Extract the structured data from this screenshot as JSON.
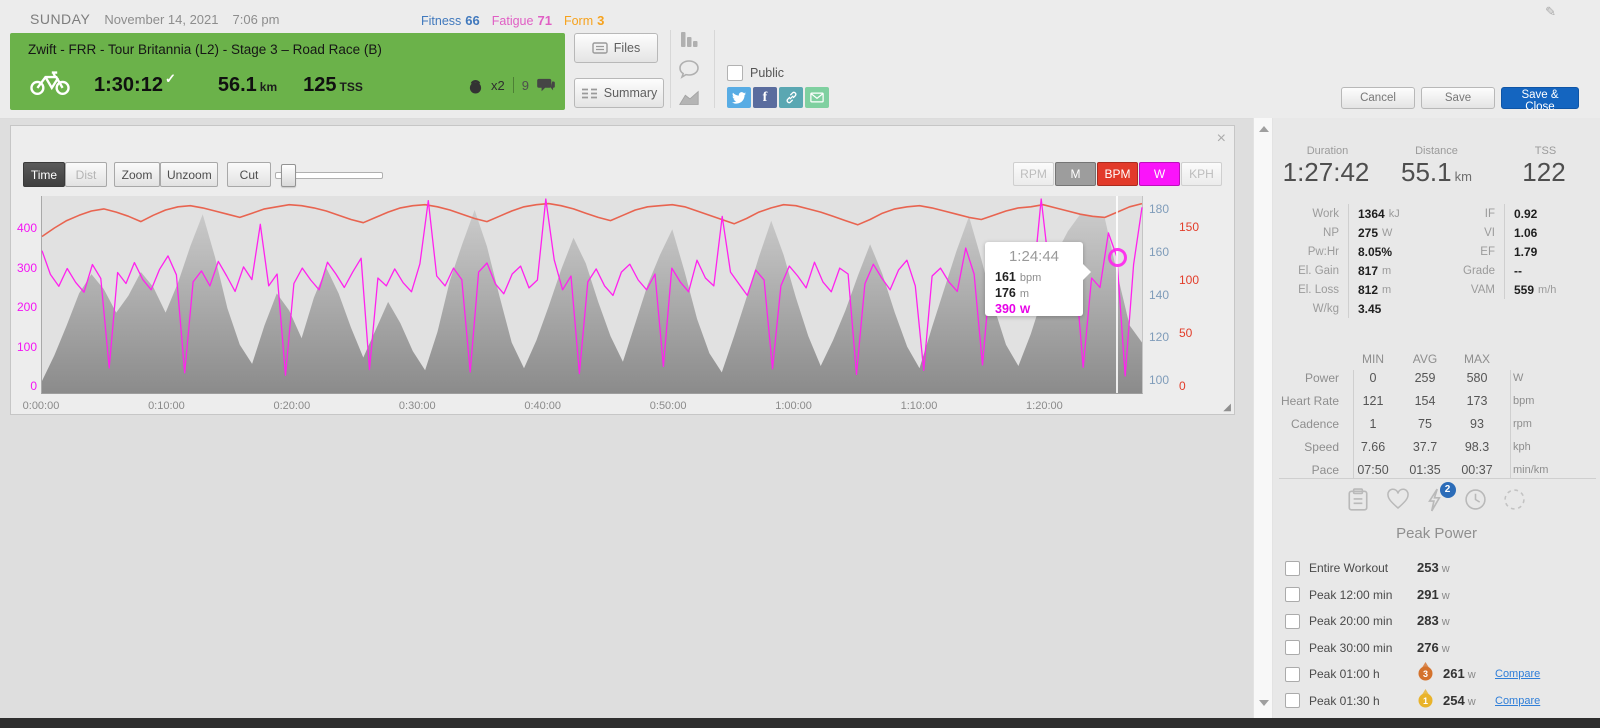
{
  "header": {
    "day": "SUNDAY",
    "date": "November 14, 2021",
    "time": "7:06 pm",
    "metrics": [
      {
        "label": "Fitness",
        "value": "66",
        "color": "#4179bd"
      },
      {
        "label": "Fatigue",
        "value": "71",
        "color": "#e05ec4"
      },
      {
        "label": "Form",
        "value": "3",
        "color": "#f6a21d"
      }
    ],
    "workout": {
      "title": "Zwift - FRR - Tour Britannia (L2) - Stage 3 – Road Race (B)",
      "duration": "1:30:12",
      "distance": "56.1",
      "distance_unit": "km",
      "tss": "125",
      "tss_unit": "TSS",
      "athletes": "x2",
      "comments": "9"
    },
    "buttons": {
      "files": "Files",
      "summary": "Summary"
    },
    "public_label": "Public",
    "actions": {
      "cancel": "Cancel",
      "save": "Save",
      "save_close": "Save & Close"
    }
  },
  "chart": {
    "toolbar": {
      "time": "Time",
      "dist": "Dist",
      "zoom": "Zoom",
      "unzoom": "Unzoom",
      "cut": "Cut"
    },
    "channels": [
      {
        "label": "RPM"
      },
      {
        "label": "M",
        "on": true,
        "color": "#9d9d9d"
      },
      {
        "label": "BPM",
        "on": true,
        "color": "#e23a2a"
      },
      {
        "label": "W",
        "on": true,
        "color": "#fa14fa"
      },
      {
        "label": "KPH"
      }
    ],
    "tooltip": {
      "time": "1:24:44",
      "hr": "161",
      "hr_unit": "bpm",
      "elev": "176",
      "elev_unit": "m",
      "power": "390",
      "power_unit": "W"
    }
  },
  "chart_data": {
    "type": "area+line",
    "x_axis": {
      "total_s": 5262,
      "tick_interval_s": 600,
      "tick_labels": [
        "0:00:00",
        "0:10:00",
        "0:20:00",
        "0:30:00",
        "0:40:00",
        "0:50:00",
        "1:00:00",
        "1:10:00",
        "1:20:00"
      ]
    },
    "axes": [
      {
        "id": "power",
        "unit": "W",
        "color": "#f414f4",
        "ticks": [
          0,
          100,
          200,
          300,
          400
        ],
        "domain": [
          0,
          400
        ]
      },
      {
        "id": "elevation",
        "unit": "m",
        "color": "#7f9cba",
        "ticks": [
          100,
          120,
          140,
          160,
          180
        ],
        "domain": [
          100,
          180
        ]
      },
      {
        "id": "heart_rate",
        "unit": "bpm",
        "color": "#e23d2a",
        "ticks": [
          0,
          50,
          100,
          150
        ],
        "domain": [
          0,
          150
        ]
      }
    ],
    "series": [
      {
        "name": "elevation",
        "axis": "elevation",
        "type": "area",
        "unit": "m",
        "values": [
          100,
          112,
          126,
          141,
          150,
          143,
          132,
          140,
          151,
          144,
          132,
          146,
          163,
          178,
          158,
          134,
          117,
          108,
          126,
          141,
          133,
          120,
          139,
          153,
          141,
          125,
          111,
          124,
          137,
          127,
          114,
          105,
          123,
          147,
          164,
          180,
          163,
          140,
          118,
          106,
          119,
          135,
          152,
          167,
          155,
          137,
          121,
          109,
          127,
          145,
          159,
          171,
          151,
          129,
          113,
          104,
          121,
          139,
          158,
          175,
          159,
          139,
          121,
          107,
          119,
          133,
          149,
          164,
          150,
          132,
          116,
          106,
          125,
          143,
          161,
          177,
          157,
          135,
          117,
          107,
          122,
          140,
          159,
          170,
          178,
          177,
          176,
          150,
          126,
          118
        ]
      },
      {
        "name": "heart_rate",
        "axis": "heart_rate",
        "type": "line",
        "color": "#e86450",
        "width": 1.6,
        "unit": "bpm",
        "values": [
          142,
          150,
          157,
          162,
          166,
          168,
          165,
          161,
          156,
          162,
          167,
          170,
          171,
          169,
          166,
          163,
          160,
          164,
          168,
          170,
          172,
          171,
          169,
          166,
          162,
          158,
          155,
          160,
          165,
          169,
          171,
          172,
          170,
          167,
          163,
          159,
          156,
          161,
          166,
          170,
          172,
          173,
          171,
          168,
          164,
          160,
          157,
          162,
          167,
          170,
          171,
          172,
          170,
          166,
          162,
          158,
          154,
          159,
          165,
          169,
          172,
          171,
          168,
          165,
          161,
          157,
          153,
          158,
          164,
          168,
          170,
          171,
          169,
          166,
          163,
          160,
          158,
          162,
          166,
          169,
          170,
          172,
          169,
          166,
          163,
          161,
          160,
          165,
          170,
          173
        ]
      },
      {
        "name": "power",
        "axis": "power",
        "type": "line",
        "color": "#ff22ee",
        "width": 1.3,
        "unit": "W",
        "values": [
          345,
          285,
          255,
          300,
          265,
          240,
          310,
          275,
          48,
          290,
          262,
          315,
          272,
          246,
          298,
          332,
          284,
          36,
          266,
          294,
          256,
          318,
          281,
          242,
          304,
          272,
          412,
          256,
          286,
          30,
          262,
          301,
          271,
          246,
          316,
          286,
          252,
          291,
          326,
          44,
          276,
          256,
          299,
          264,
          241,
          312,
          472,
          281,
          256,
          301,
          272,
          38,
          291,
          314,
          261,
          236,
          286,
          306,
          251,
          271,
          580,
          322,
          246,
          281,
          34,
          266,
          299,
          256,
          232,
          291,
          311,
          271,
          246,
          286,
          52,
          301,
          266,
          241,
          321,
          276,
          256,
          432,
          291,
          261,
          232,
          296,
          271,
          46,
          256,
          306,
          281,
          251,
          316,
          266,
          241,
          301,
          286,
          32,
          261,
          311,
          276,
          246,
          296,
          321,
          256,
          42,
          281,
          301,
          266,
          242,
          352,
          286,
          56,
          301,
          271,
          246,
          311,
          281,
          256,
          492,
          291,
          262,
          236,
          306,
          50,
          276,
          252,
          390,
          330,
          28,
          310,
          455
        ]
      }
    ],
    "cursor": {
      "time": "1:24:44",
      "power": 390,
      "heart_rate": 161,
      "elevation": 176
    }
  },
  "sidebar": {
    "summary": [
      {
        "label": "Duration",
        "value": "1:27:42",
        "unit": ""
      },
      {
        "label": "Distance",
        "value": "55.1",
        "unit": "km"
      },
      {
        "label": "TSS",
        "value": "122",
        "unit": ""
      }
    ],
    "stats_left": [
      {
        "label": "Work",
        "value": "1364",
        "unit": "kJ"
      },
      {
        "label": "NP",
        "value": "275",
        "unit": "W"
      },
      {
        "label": "Pw:Hr",
        "value": "8.05%",
        "unit": ""
      },
      {
        "label": "El. Gain",
        "value": "817",
        "unit": "m"
      },
      {
        "label": "El. Loss",
        "value": "812",
        "unit": "m"
      },
      {
        "label": "W/kg",
        "value": "3.45",
        "unit": ""
      }
    ],
    "stats_right": [
      {
        "label": "IF",
        "value": "0.92",
        "unit": ""
      },
      {
        "label": "VI",
        "value": "1.06",
        "unit": ""
      },
      {
        "label": "EF",
        "value": "1.79",
        "unit": ""
      },
      {
        "label": "Grade",
        "value": "--",
        "unit": ""
      },
      {
        "label": "VAM",
        "value": "559",
        "unit": "m/h"
      }
    ],
    "mam": {
      "headers": [
        "MIN",
        "AVG",
        "MAX"
      ],
      "rows": [
        {
          "label": "Power",
          "min": "0",
          "avg": "259",
          "max": "580",
          "unit": "W"
        },
        {
          "label": "Heart Rate",
          "min": "121",
          "avg": "154",
          "max": "173",
          "unit": "bpm"
        },
        {
          "label": "Cadence",
          "min": "1",
          "avg": "75",
          "max": "93",
          "unit": "rpm"
        },
        {
          "label": "Speed",
          "min": "7.66",
          "avg": "37.7",
          "max": "98.3",
          "unit": "kph"
        },
        {
          "label": "Pace",
          "min": "07:50",
          "avg": "01:35",
          "max": "00:37",
          "unit": "min/km"
        }
      ]
    },
    "peak": {
      "title": "Peak Power",
      "badge": "2",
      "rows": [
        {
          "label": "Entire Workout",
          "value": "253",
          "unit": "w"
        },
        {
          "label": "Peak 12:00 min",
          "value": "291",
          "unit": "w"
        },
        {
          "label": "Peak 20:00 min",
          "value": "283",
          "unit": "w"
        },
        {
          "label": "Peak 30:00 min",
          "value": "276",
          "unit": "w"
        },
        {
          "label": "Peak 01:00 h",
          "value": "261",
          "unit": "w",
          "medal": "3",
          "medal_color": "#d4722c",
          "compare": "Compare"
        },
        {
          "label": "Peak 01:30 h",
          "value": "254",
          "unit": "w",
          "medal": "1",
          "medal_color": "#e9b32a",
          "compare": "Compare"
        }
      ]
    }
  }
}
